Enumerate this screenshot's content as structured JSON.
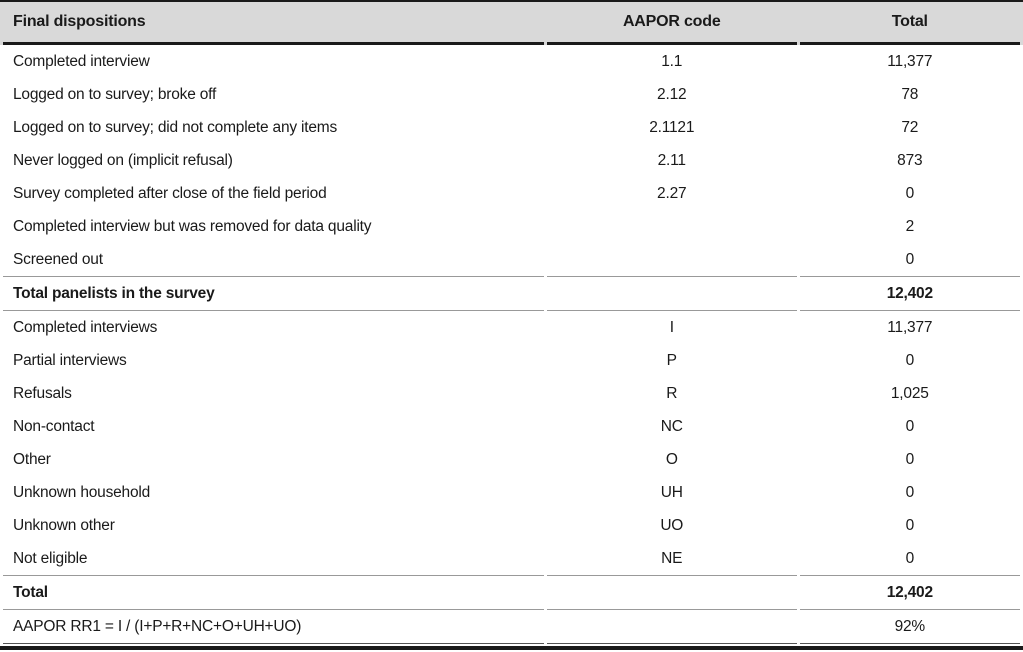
{
  "document": {
    "kind": "survey-dispositions-table"
  },
  "colors": {
    "header_bg": "#d9d9d9",
    "rule_dark": "#1a1a1a",
    "rule_thin": "#999999",
    "text": "#1a1a1a"
  },
  "table": {
    "columns": [
      {
        "label": "Final dispositions",
        "align": "left"
      },
      {
        "label": "AAPOR code",
        "align": "center"
      },
      {
        "label": "Total",
        "align": "center"
      }
    ],
    "rows": [
      {
        "label": "Completed interview",
        "code": "1.1",
        "total": "11,377",
        "style": "normal"
      },
      {
        "label": "Logged on to survey; broke off",
        "code": "2.12",
        "total": "78",
        "style": "normal"
      },
      {
        "label": "Logged on to survey; did not complete any items",
        "code": "2.1121",
        "total": "72",
        "style": "normal"
      },
      {
        "label": "Never logged on (implicit refusal)",
        "code": "2.11",
        "total": "873",
        "style": "normal"
      },
      {
        "label": "Survey completed after close of the field period",
        "code": "2.27",
        "total": "0",
        "style": "normal"
      },
      {
        "label": "Completed interview but was removed for data quality",
        "code": "",
        "total": "2",
        "style": "normal"
      },
      {
        "label": "Screened out",
        "code": "",
        "total": "0",
        "style": "normal"
      },
      {
        "label": "Total panelists in the survey",
        "code": "",
        "total": "12,402",
        "style": "subtotal"
      },
      {
        "label": "Completed interviews",
        "code": "I",
        "total": "11,377",
        "style": "normal"
      },
      {
        "label": "Partial interviews",
        "code": "P",
        "total": "0",
        "style": "normal"
      },
      {
        "label": "Refusals",
        "code": "R",
        "total": "1,025",
        "style": "normal"
      },
      {
        "label": "Non-contact",
        "code": "NC",
        "total": "0",
        "style": "normal"
      },
      {
        "label": "Other",
        "code": "O",
        "total": "0",
        "style": "normal"
      },
      {
        "label": "Unknown household",
        "code": "UH",
        "total": "0",
        "style": "normal"
      },
      {
        "label": "Unknown other",
        "code": "UO",
        "total": "0",
        "style": "normal"
      },
      {
        "label": "Not eligible",
        "code": "NE",
        "total": "0",
        "style": "normal"
      },
      {
        "label": "Total",
        "code": "",
        "total": "12,402",
        "style": "subtotal"
      },
      {
        "label": "AAPOR RR1 = I / (I+P+R+NC+O+UH+UO)",
        "code": "",
        "total": "92%",
        "style": "formula"
      }
    ]
  }
}
